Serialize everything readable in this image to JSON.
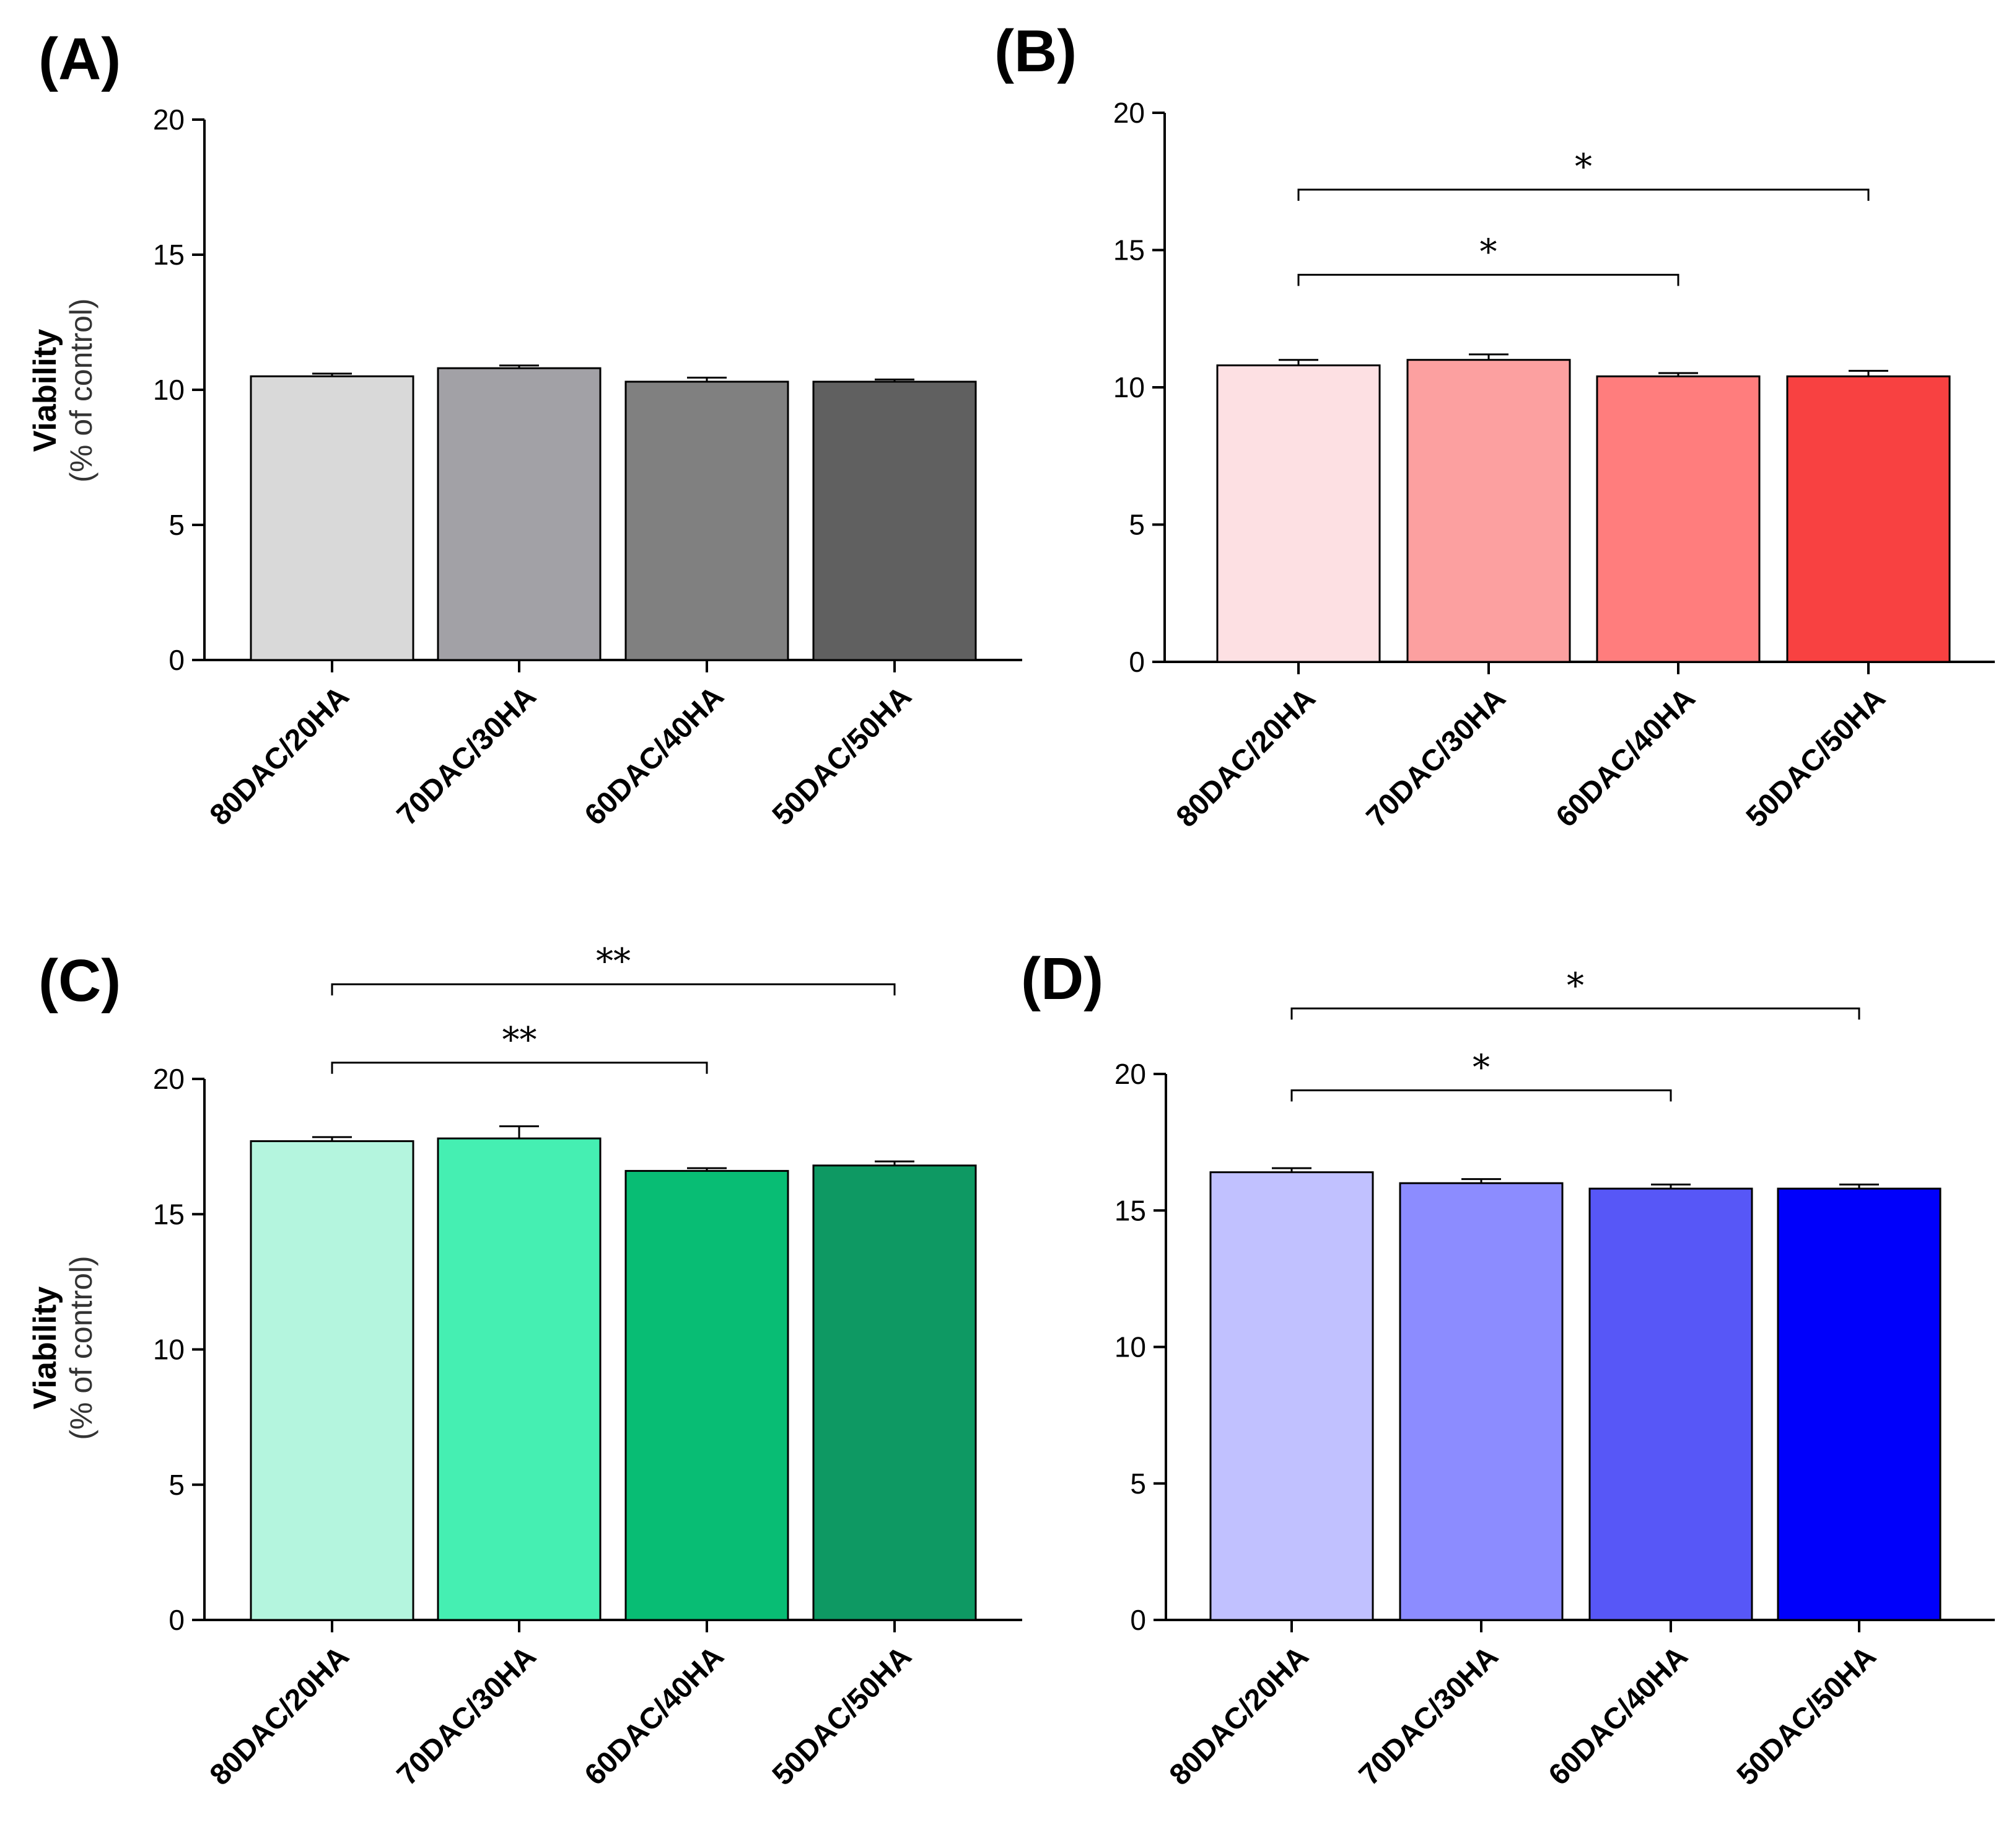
{
  "chart_data": [
    {
      "type": "bar",
      "panel": "(A)",
      "title": "",
      "xlabel": "",
      "ylabel": "Viability",
      "ylabel_sub": "(% of control)",
      "ylim": [
        0,
        20
      ],
      "yticks": [
        0,
        5,
        10,
        15,
        20
      ],
      "categories": [
        "80DAC/20HA",
        "70DAC/30HA",
        "60DAC/40HA",
        "50DAC/50HA"
      ],
      "values": [
        10.5,
        10.8,
        10.3,
        10.3
      ],
      "errors": [
        0.1,
        0.1,
        0.15,
        0.08
      ],
      "colors": [
        "#d9d9d9",
        "#a2a1a6",
        "#808080",
        "#606060"
      ],
      "significance": []
    },
    {
      "type": "bar",
      "panel": "(B)",
      "title": "",
      "xlabel": "",
      "ylabel": "",
      "ylabel_sub": "",
      "ylim": [
        0,
        20
      ],
      "yticks": [
        0,
        5,
        10,
        15,
        20
      ],
      "categories": [
        "80DAC/20HA",
        "70DAC/30HA",
        "60DAC/40HA",
        "50DAC/50HA"
      ],
      "values": [
        10.8,
        11.0,
        10.4,
        10.4
      ],
      "errors": [
        0.2,
        0.2,
        0.12,
        0.2
      ],
      "colors": [
        "#fde0e3",
        "#fca0a0",
        "#ff7d7d",
        "#f84141"
      ],
      "significance": [
        {
          "from": 0,
          "to": 2,
          "label": "*",
          "y": 14.1
        },
        {
          "from": 0,
          "to": 3,
          "label": "*",
          "y": 17.2
        }
      ]
    },
    {
      "type": "bar",
      "panel": "(C)",
      "title": "",
      "xlabel": "",
      "ylabel": "Viability",
      "ylabel_sub": "(% of control)",
      "ylim": [
        0,
        20
      ],
      "yticks": [
        0,
        5,
        10,
        15,
        20
      ],
      "categories": [
        "80DAC/20HA",
        "70DAC/30HA",
        "60DAC/40HA",
        "50DAC/50HA"
      ],
      "values": [
        17.7,
        17.8,
        16.6,
        16.8
      ],
      "errors": [
        0.15,
        0.45,
        0.1,
        0.15
      ],
      "colors": [
        "#b4f5de",
        "#45efb2",
        "#08bd74",
        "#0e9963"
      ],
      "significance": [
        {
          "from": 0,
          "to": 2,
          "label": "**",
          "y": 20.6
        },
        {
          "from": 0,
          "to": 3,
          "label": "**",
          "y": 23.5
        }
      ]
    },
    {
      "type": "bar",
      "panel": "(D)",
      "title": "",
      "xlabel": "",
      "ylabel": "",
      "ylabel_sub": "",
      "ylim": [
        0,
        20
      ],
      "yticks": [
        0,
        5,
        10,
        15,
        20
      ],
      "categories": [
        "80DAC/20HA",
        "70DAC/30HA",
        "60DAC/40HA",
        "50DAC/50HA"
      ],
      "values": [
        16.4,
        16.0,
        15.8,
        15.8
      ],
      "errors": [
        0.15,
        0.15,
        0.15,
        0.15
      ],
      "colors": [
        "#c1c1ff",
        "#8c8cff",
        "#5757f7",
        "#0000fb"
      ],
      "significance": [
        {
          "from": 0,
          "to": 2,
          "label": "*",
          "y": 19.4
        },
        {
          "from": 0,
          "to": 3,
          "label": "*",
          "y": 22.4
        }
      ]
    }
  ]
}
